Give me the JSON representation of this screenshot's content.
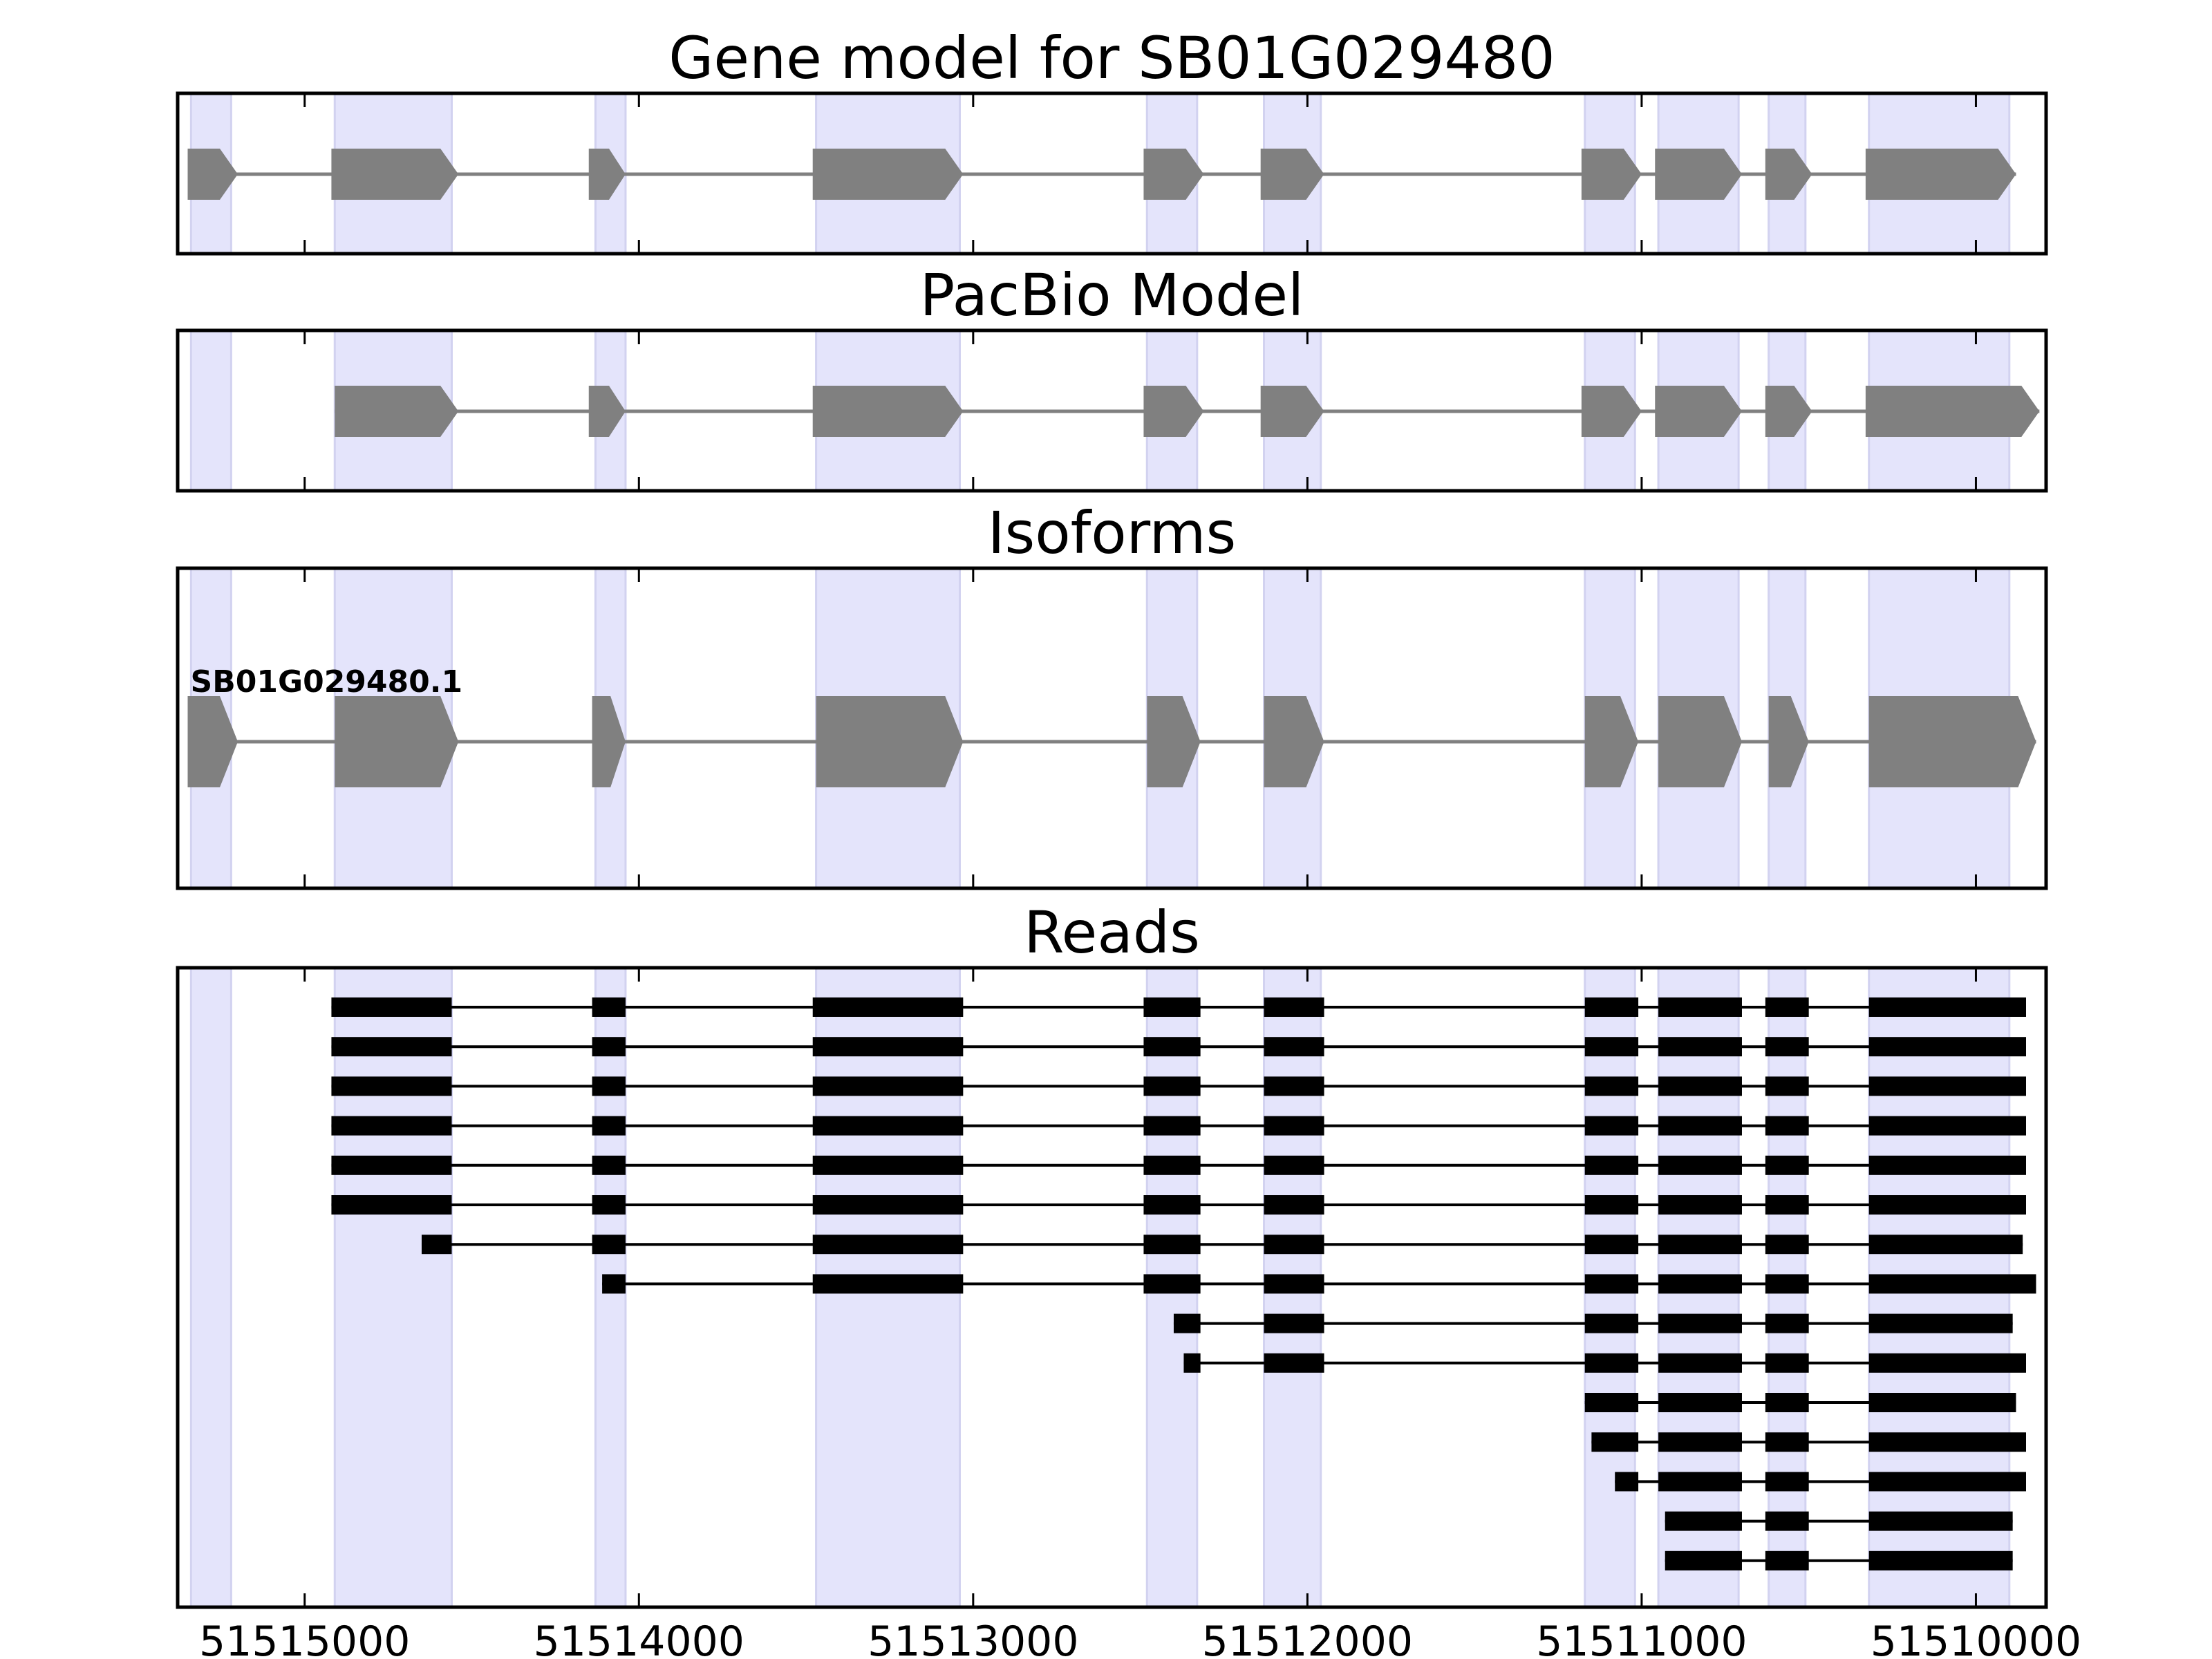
{
  "colors": {
    "exon_band": "#e4e4fb",
    "exon_band_edge": "#d2d2f0",
    "model_feature": "#808080",
    "intron_line": "#808080",
    "read_feature": "#000000",
    "axis": "#000000"
  },
  "chart_data": {
    "type": "gene-structure",
    "xlim": [
      51515380,
      51509790
    ],
    "x_ticks": [
      51515000,
      51514000,
      51513000,
      51512000,
      51511000,
      51510000
    ],
    "x_tick_labels": [
      "51515000",
      "51514000",
      "51513000",
      "51512000",
      "51511000",
      "51510000"
    ],
    "strand": "-",
    "exon_regions": [
      [
        51515340,
        51515220
      ],
      [
        51514910,
        51514560
      ],
      [
        51514130,
        51514040
      ],
      [
        51513470,
        51513040
      ],
      [
        51512480,
        51512330
      ],
      [
        51512130,
        51511960
      ],
      [
        51511170,
        51511020
      ],
      [
        51510950,
        51510710
      ],
      [
        51510620,
        51510510
      ],
      [
        51510320,
        51509900
      ]
    ],
    "panels": [
      {
        "title": "Gene model for SB01G029480",
        "style": "model",
        "tracks": [
          {
            "label": "",
            "exons": [
              [
                51515350,
                51515200
              ],
              [
                51514920,
                51514540
              ],
              [
                51514150,
                51514040
              ],
              [
                51513480,
                51513030
              ],
              [
                51512490,
                51512310
              ],
              [
                51512140,
                51511950
              ],
              [
                51511180,
                51511000
              ],
              [
                51510960,
                51510700
              ],
              [
                51510630,
                51510490
              ],
              [
                51510330,
                51509880
              ]
            ]
          }
        ]
      },
      {
        "title": "PacBio Model",
        "style": "model",
        "tracks": [
          {
            "label": "",
            "exons": [
              [
                51514910,
                51514540
              ],
              [
                51514150,
                51514040
              ],
              [
                51513480,
                51513030
              ],
              [
                51512490,
                51512310
              ],
              [
                51512140,
                51511950
              ],
              [
                51511180,
                51511000
              ],
              [
                51510960,
                51510700
              ],
              [
                51510630,
                51510490
              ],
              [
                51510330,
                51509810
              ]
            ]
          }
        ]
      },
      {
        "title": "Isoforms",
        "style": "model",
        "tracks": [
          {
            "label": "SB01G029480.1",
            "exons": [
              [
                51515350,
                51515200
              ],
              [
                51514910,
                51514540
              ],
              [
                51514140,
                51514040
              ],
              [
                51513470,
                51513030
              ],
              [
                51512480,
                51512320
              ],
              [
                51512130,
                51511950
              ],
              [
                51511170,
                51511010
              ],
              [
                51510950,
                51510700
              ],
              [
                51510620,
                51510500
              ],
              [
                51510320,
                51509820
              ]
            ]
          }
        ]
      },
      {
        "title": "Reads",
        "style": "reads",
        "tracks": [
          {
            "label": "",
            "exons": [
              [
                51514920,
                51514560
              ],
              [
                51514140,
                51514040
              ],
              [
                51513480,
                51513030
              ],
              [
                51512490,
                51512320
              ],
              [
                51512130,
                51511950
              ],
              [
                51511170,
                51511010
              ],
              [
                51510950,
                51510700
              ],
              [
                51510630,
                51510500
              ],
              [
                51510320,
                51509850
              ]
            ]
          },
          {
            "label": "",
            "exons": [
              [
                51514920,
                51514560
              ],
              [
                51514140,
                51514040
              ],
              [
                51513480,
                51513030
              ],
              [
                51512490,
                51512320
              ],
              [
                51512130,
                51511950
              ],
              [
                51511170,
                51511010
              ],
              [
                51510950,
                51510700
              ],
              [
                51510630,
                51510500
              ],
              [
                51510320,
                51509850
              ]
            ]
          },
          {
            "label": "",
            "exons": [
              [
                51514920,
                51514560
              ],
              [
                51514140,
                51514040
              ],
              [
                51513480,
                51513030
              ],
              [
                51512490,
                51512320
              ],
              [
                51512130,
                51511950
              ],
              [
                51511170,
                51511010
              ],
              [
                51510950,
                51510700
              ],
              [
                51510630,
                51510500
              ],
              [
                51510320,
                51509850
              ]
            ]
          },
          {
            "label": "",
            "exons": [
              [
                51514920,
                51514560
              ],
              [
                51514140,
                51514040
              ],
              [
                51513480,
                51513030
              ],
              [
                51512490,
                51512320
              ],
              [
                51512130,
                51511950
              ],
              [
                51511170,
                51511010
              ],
              [
                51510950,
                51510700
              ],
              [
                51510630,
                51510500
              ],
              [
                51510320,
                51509850
              ]
            ]
          },
          {
            "label": "",
            "exons": [
              [
                51514920,
                51514560
              ],
              [
                51514140,
                51514040
              ],
              [
                51513480,
                51513030
              ],
              [
                51512490,
                51512320
              ],
              [
                51512130,
                51511950
              ],
              [
                51511170,
                51511010
              ],
              [
                51510950,
                51510700
              ],
              [
                51510630,
                51510500
              ],
              [
                51510320,
                51509850
              ]
            ]
          },
          {
            "label": "",
            "exons": [
              [
                51514920,
                51514560
              ],
              [
                51514140,
                51514040
              ],
              [
                51513480,
                51513030
              ],
              [
                51512490,
                51512320
              ],
              [
                51512130,
                51511950
              ],
              [
                51511170,
                51511010
              ],
              [
                51510950,
                51510700
              ],
              [
                51510630,
                51510500
              ],
              [
                51510320,
                51509850
              ]
            ]
          },
          {
            "label": "",
            "exons": [
              [
                51514650,
                51514560
              ],
              [
                51514140,
                51514040
              ],
              [
                51513480,
                51513030
              ],
              [
                51512490,
                51512320
              ],
              [
                51512130,
                51511950
              ],
              [
                51511170,
                51511010
              ],
              [
                51510950,
                51510700
              ],
              [
                51510630,
                51510500
              ],
              [
                51510320,
                51509860
              ]
            ]
          },
          {
            "label": "",
            "exons": [
              [
                51514110,
                51514040
              ],
              [
                51513480,
                51513030
              ],
              [
                51512490,
                51512320
              ],
              [
                51512130,
                51511950
              ],
              [
                51511170,
                51511010
              ],
              [
                51510950,
                51510700
              ],
              [
                51510630,
                51510500
              ],
              [
                51510320,
                51509820
              ]
            ]
          },
          {
            "label": "",
            "exons": [
              [
                51512400,
                51512320
              ],
              [
                51512130,
                51511950
              ],
              [
                51511170,
                51511010
              ],
              [
                51510950,
                51510700
              ],
              [
                51510630,
                51510500
              ],
              [
                51510320,
                51509890
              ]
            ]
          },
          {
            "label": "",
            "exons": [
              [
                51512370,
                51512320
              ],
              [
                51512130,
                51511950
              ],
              [
                51511170,
                51511010
              ],
              [
                51510950,
                51510700
              ],
              [
                51510630,
                51510500
              ],
              [
                51510320,
                51509850
              ]
            ]
          },
          {
            "label": "",
            "exons": [
              [
                51511170,
                51511010
              ],
              [
                51510950,
                51510700
              ],
              [
                51510630,
                51510500
              ],
              [
                51510320,
                51509880
              ]
            ]
          },
          {
            "label": "",
            "exons": [
              [
                51511150,
                51511010
              ],
              [
                51510950,
                51510700
              ],
              [
                51510630,
                51510500
              ],
              [
                51510320,
                51509850
              ]
            ]
          },
          {
            "label": "",
            "exons": [
              [
                51511080,
                51511010
              ],
              [
                51510950,
                51510700
              ],
              [
                51510630,
                51510500
              ],
              [
                51510320,
                51509850
              ]
            ]
          },
          {
            "label": "",
            "exons": [
              [
                51510930,
                51510700
              ],
              [
                51510630,
                51510500
              ],
              [
                51510320,
                51509890
              ]
            ]
          },
          {
            "label": "",
            "exons": [
              [
                51510930,
                51510700
              ],
              [
                51510630,
                51510500
              ],
              [
                51510320,
                51509890
              ]
            ]
          }
        ]
      }
    ]
  }
}
